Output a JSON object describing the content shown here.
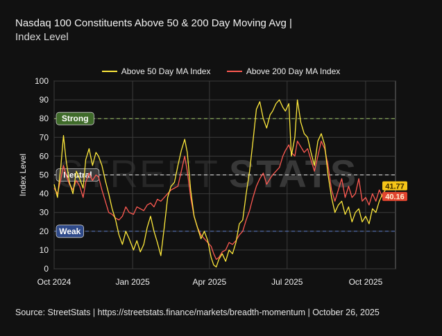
{
  "title": {
    "line1": "Nasdaq 100 Constituents Above 50 & 200 Day Moving Avg |",
    "line2": "Index Level"
  },
  "legend": [
    {
      "name": "Above 50 Day MA Index",
      "color": "#ffea3c"
    },
    {
      "name": "Above 200 Day MA Index",
      "color": "#ff5a52"
    }
  ],
  "footer": "Source:  StreetStats  |  https://streetstats.finance/markets/breadth-momentum  |  October 26, 2025",
  "watermark": {
    "left": "STREET",
    "right": "STATS"
  },
  "zones": [
    {
      "name": "Strong",
      "value": 80,
      "color": "#a8d26a",
      "badge": "#3f6b2a"
    },
    {
      "name": "Neutral",
      "value": 50,
      "color": "#ffffff",
      "badge": "#3a3a3a"
    },
    {
      "name": "Weak",
      "value": 20,
      "color": "#5b7fd6",
      "badge": "#2f4a8a"
    }
  ],
  "chart_data": {
    "type": "line",
    "ylabel": "Index Level",
    "ylim": [
      0,
      100
    ],
    "yticks": [
      0,
      10,
      20,
      30,
      40,
      50,
      60,
      70,
      80,
      90,
      100
    ],
    "xlim": [
      "2024-10-01",
      "2025-11-05"
    ],
    "xticks": [
      {
        "label": "Oct 2024",
        "date": "2024-10-01"
      },
      {
        "label": "Jan 2025",
        "date": "2025-01-01"
      },
      {
        "label": "Apr 2025",
        "date": "2025-04-01"
      },
      {
        "label": "Jul 2025",
        "date": "2025-07-01"
      },
      {
        "label": "Oct 2025",
        "date": "2025-10-01"
      }
    ],
    "grid": true,
    "last_values": {
      "above_50": "41.77",
      "above_200": "40.16"
    },
    "series": [
      {
        "name": "Above 50 Day MA Index",
        "color": "#ffea3c",
        "points": [
          [
            "2024-10-01",
            45
          ],
          [
            "2024-10-05",
            38
          ],
          [
            "2024-10-09",
            55
          ],
          [
            "2024-10-12",
            71
          ],
          [
            "2024-10-15",
            58
          ],
          [
            "2024-10-19",
            46
          ],
          [
            "2024-10-23",
            40
          ],
          [
            "2024-10-27",
            52
          ],
          [
            "2024-10-31",
            48
          ],
          [
            "2024-11-04",
            43
          ],
          [
            "2024-11-07",
            58
          ],
          [
            "2024-11-11",
            64
          ],
          [
            "2024-11-15",
            55
          ],
          [
            "2024-11-19",
            62
          ],
          [
            "2024-11-22",
            60
          ],
          [
            "2024-11-26",
            55
          ],
          [
            "2024-11-30",
            47
          ],
          [
            "2024-12-04",
            40
          ],
          [
            "2024-12-08",
            32
          ],
          [
            "2024-12-12",
            26
          ],
          [
            "2024-12-16",
            18
          ],
          [
            "2024-12-20",
            13
          ],
          [
            "2024-12-24",
            20
          ],
          [
            "2024-12-28",
            16
          ],
          [
            "2025-01-02",
            10
          ],
          [
            "2025-01-06",
            15
          ],
          [
            "2025-01-10",
            9
          ],
          [
            "2025-01-14",
            13
          ],
          [
            "2025-01-18",
            22
          ],
          [
            "2025-01-22",
            28
          ],
          [
            "2025-01-26",
            20
          ],
          [
            "2025-01-30",
            14
          ],
          [
            "2025-02-03",
            7
          ],
          [
            "2025-02-07",
            22
          ],
          [
            "2025-02-11",
            38
          ],
          [
            "2025-02-15",
            44
          ],
          [
            "2025-02-19",
            46
          ],
          [
            "2025-02-23",
            55
          ],
          [
            "2025-02-27",
            63
          ],
          [
            "2025-03-03",
            69
          ],
          [
            "2025-03-06",
            62
          ],
          [
            "2025-03-10",
            42
          ],
          [
            "2025-03-14",
            28
          ],
          [
            "2025-03-18",
            22
          ],
          [
            "2025-03-22",
            16
          ],
          [
            "2025-03-26",
            20
          ],
          [
            "2025-03-30",
            15
          ],
          [
            "2025-04-03",
            6
          ],
          [
            "2025-04-06",
            2
          ],
          [
            "2025-04-09",
            1
          ],
          [
            "2025-04-12",
            5
          ],
          [
            "2025-04-16",
            8
          ],
          [
            "2025-04-20",
            4
          ],
          [
            "2025-04-24",
            10
          ],
          [
            "2025-04-28",
            8
          ],
          [
            "2025-05-02",
            14
          ],
          [
            "2025-05-06",
            24
          ],
          [
            "2025-05-10",
            26
          ],
          [
            "2025-05-14",
            40
          ],
          [
            "2025-05-18",
            52
          ],
          [
            "2025-05-22",
            68
          ],
          [
            "2025-05-26",
            85
          ],
          [
            "2025-05-30",
            89
          ],
          [
            "2025-06-03",
            80
          ],
          [
            "2025-06-07",
            75
          ],
          [
            "2025-06-11",
            82
          ],
          [
            "2025-06-14",
            84
          ],
          [
            "2025-06-18",
            88
          ],
          [
            "2025-06-22",
            90
          ],
          [
            "2025-06-26",
            86
          ],
          [
            "2025-06-29",
            84
          ],
          [
            "2025-07-03",
            88
          ],
          [
            "2025-07-06",
            60
          ],
          [
            "2025-07-10",
            70
          ],
          [
            "2025-07-13",
            90
          ],
          [
            "2025-07-17",
            78
          ],
          [
            "2025-07-21",
            72
          ],
          [
            "2025-07-25",
            70
          ],
          [
            "2025-07-29",
            62
          ],
          [
            "2025-08-02",
            55
          ],
          [
            "2025-08-06",
            68
          ],
          [
            "2025-08-10",
            72
          ],
          [
            "2025-08-14",
            66
          ],
          [
            "2025-08-18",
            50
          ],
          [
            "2025-08-22",
            38
          ],
          [
            "2025-08-26",
            30
          ],
          [
            "2025-08-30",
            34
          ],
          [
            "2025-09-03",
            36
          ],
          [
            "2025-09-07",
            29
          ],
          [
            "2025-09-11",
            33
          ],
          [
            "2025-09-15",
            25
          ],
          [
            "2025-09-19",
            30
          ],
          [
            "2025-09-23",
            32
          ],
          [
            "2025-09-27",
            25
          ],
          [
            "2025-10-01",
            28
          ],
          [
            "2025-10-05",
            24
          ],
          [
            "2025-10-09",
            32
          ],
          [
            "2025-10-13",
            30
          ],
          [
            "2025-10-17",
            36
          ],
          [
            "2025-10-21",
            40
          ],
          [
            "2025-10-24",
            41.77
          ]
        ]
      },
      {
        "name": "Above 200 Day MA Index",
        "color": "#ff5a52",
        "points": [
          [
            "2024-10-01",
            43
          ],
          [
            "2024-10-05",
            40
          ],
          [
            "2024-10-09",
            48
          ],
          [
            "2024-10-12",
            55
          ],
          [
            "2024-10-15",
            50
          ],
          [
            "2024-10-19",
            45
          ],
          [
            "2024-10-23",
            42
          ],
          [
            "2024-10-27",
            47
          ],
          [
            "2024-10-31",
            44
          ],
          [
            "2024-11-04",
            38
          ],
          [
            "2024-11-07",
            46
          ],
          [
            "2024-11-11",
            51
          ],
          [
            "2024-11-15",
            47
          ],
          [
            "2024-11-19",
            50
          ],
          [
            "2024-11-22",
            49
          ],
          [
            "2024-11-26",
            42
          ],
          [
            "2024-11-30",
            36
          ],
          [
            "2024-12-04",
            30
          ],
          [
            "2024-12-08",
            29
          ],
          [
            "2024-12-12",
            27
          ],
          [
            "2024-12-16",
            26
          ],
          [
            "2024-12-20",
            28
          ],
          [
            "2024-12-24",
            33
          ],
          [
            "2024-12-28",
            30
          ],
          [
            "2025-01-02",
            29
          ],
          [
            "2025-01-06",
            33
          ],
          [
            "2025-01-10",
            32
          ],
          [
            "2025-01-14",
            31
          ],
          [
            "2025-01-18",
            34
          ],
          [
            "2025-01-22",
            35
          ],
          [
            "2025-01-26",
            33
          ],
          [
            "2025-01-30",
            37
          ],
          [
            "2025-02-03",
            36
          ],
          [
            "2025-02-07",
            38
          ],
          [
            "2025-02-11",
            40
          ],
          [
            "2025-02-15",
            42
          ],
          [
            "2025-02-19",
            43
          ],
          [
            "2025-02-23",
            44
          ],
          [
            "2025-02-27",
            52
          ],
          [
            "2025-03-03",
            60
          ],
          [
            "2025-03-06",
            52
          ],
          [
            "2025-03-10",
            38
          ],
          [
            "2025-03-14",
            28
          ],
          [
            "2025-03-18",
            22
          ],
          [
            "2025-03-22",
            18
          ],
          [
            "2025-03-26",
            16
          ],
          [
            "2025-03-30",
            14
          ],
          [
            "2025-04-03",
            12
          ],
          [
            "2025-04-06",
            8
          ],
          [
            "2025-04-09",
            5
          ],
          [
            "2025-04-12",
            6
          ],
          [
            "2025-04-16",
            9
          ],
          [
            "2025-04-20",
            10
          ],
          [
            "2025-04-24",
            14
          ],
          [
            "2025-04-28",
            13
          ],
          [
            "2025-05-02",
            15
          ],
          [
            "2025-05-06",
            18
          ],
          [
            "2025-05-10",
            20
          ],
          [
            "2025-05-14",
            26
          ],
          [
            "2025-05-18",
            31
          ],
          [
            "2025-05-22",
            38
          ],
          [
            "2025-05-26",
            44
          ],
          [
            "2025-05-30",
            48
          ],
          [
            "2025-06-03",
            51
          ],
          [
            "2025-06-07",
            45
          ],
          [
            "2025-06-11",
            48
          ],
          [
            "2025-06-14",
            50
          ],
          [
            "2025-06-18",
            52
          ],
          [
            "2025-06-22",
            54
          ],
          [
            "2025-06-26",
            60
          ],
          [
            "2025-06-29",
            63
          ],
          [
            "2025-07-03",
            66
          ],
          [
            "2025-07-06",
            62
          ],
          [
            "2025-07-10",
            60
          ],
          [
            "2025-07-13",
            68
          ],
          [
            "2025-07-17",
            65
          ],
          [
            "2025-07-21",
            62
          ],
          [
            "2025-07-25",
            64
          ],
          [
            "2025-07-29",
            58
          ],
          [
            "2025-08-02",
            52
          ],
          [
            "2025-08-06",
            60
          ],
          [
            "2025-08-10",
            68
          ],
          [
            "2025-08-14",
            64
          ],
          [
            "2025-08-18",
            55
          ],
          [
            "2025-08-22",
            42
          ],
          [
            "2025-08-26",
            36
          ],
          [
            "2025-08-30",
            42
          ],
          [
            "2025-09-03",
            48
          ],
          [
            "2025-09-07",
            38
          ],
          [
            "2025-09-11",
            44
          ],
          [
            "2025-09-15",
            38
          ],
          [
            "2025-09-19",
            40
          ],
          [
            "2025-09-23",
            48
          ],
          [
            "2025-09-27",
            36
          ],
          [
            "2025-10-01",
            38
          ],
          [
            "2025-10-05",
            34
          ],
          [
            "2025-10-09",
            40
          ],
          [
            "2025-10-13",
            36
          ],
          [
            "2025-10-17",
            42
          ],
          [
            "2025-10-21",
            38
          ],
          [
            "2025-10-24",
            40.16
          ]
        ]
      }
    ]
  }
}
